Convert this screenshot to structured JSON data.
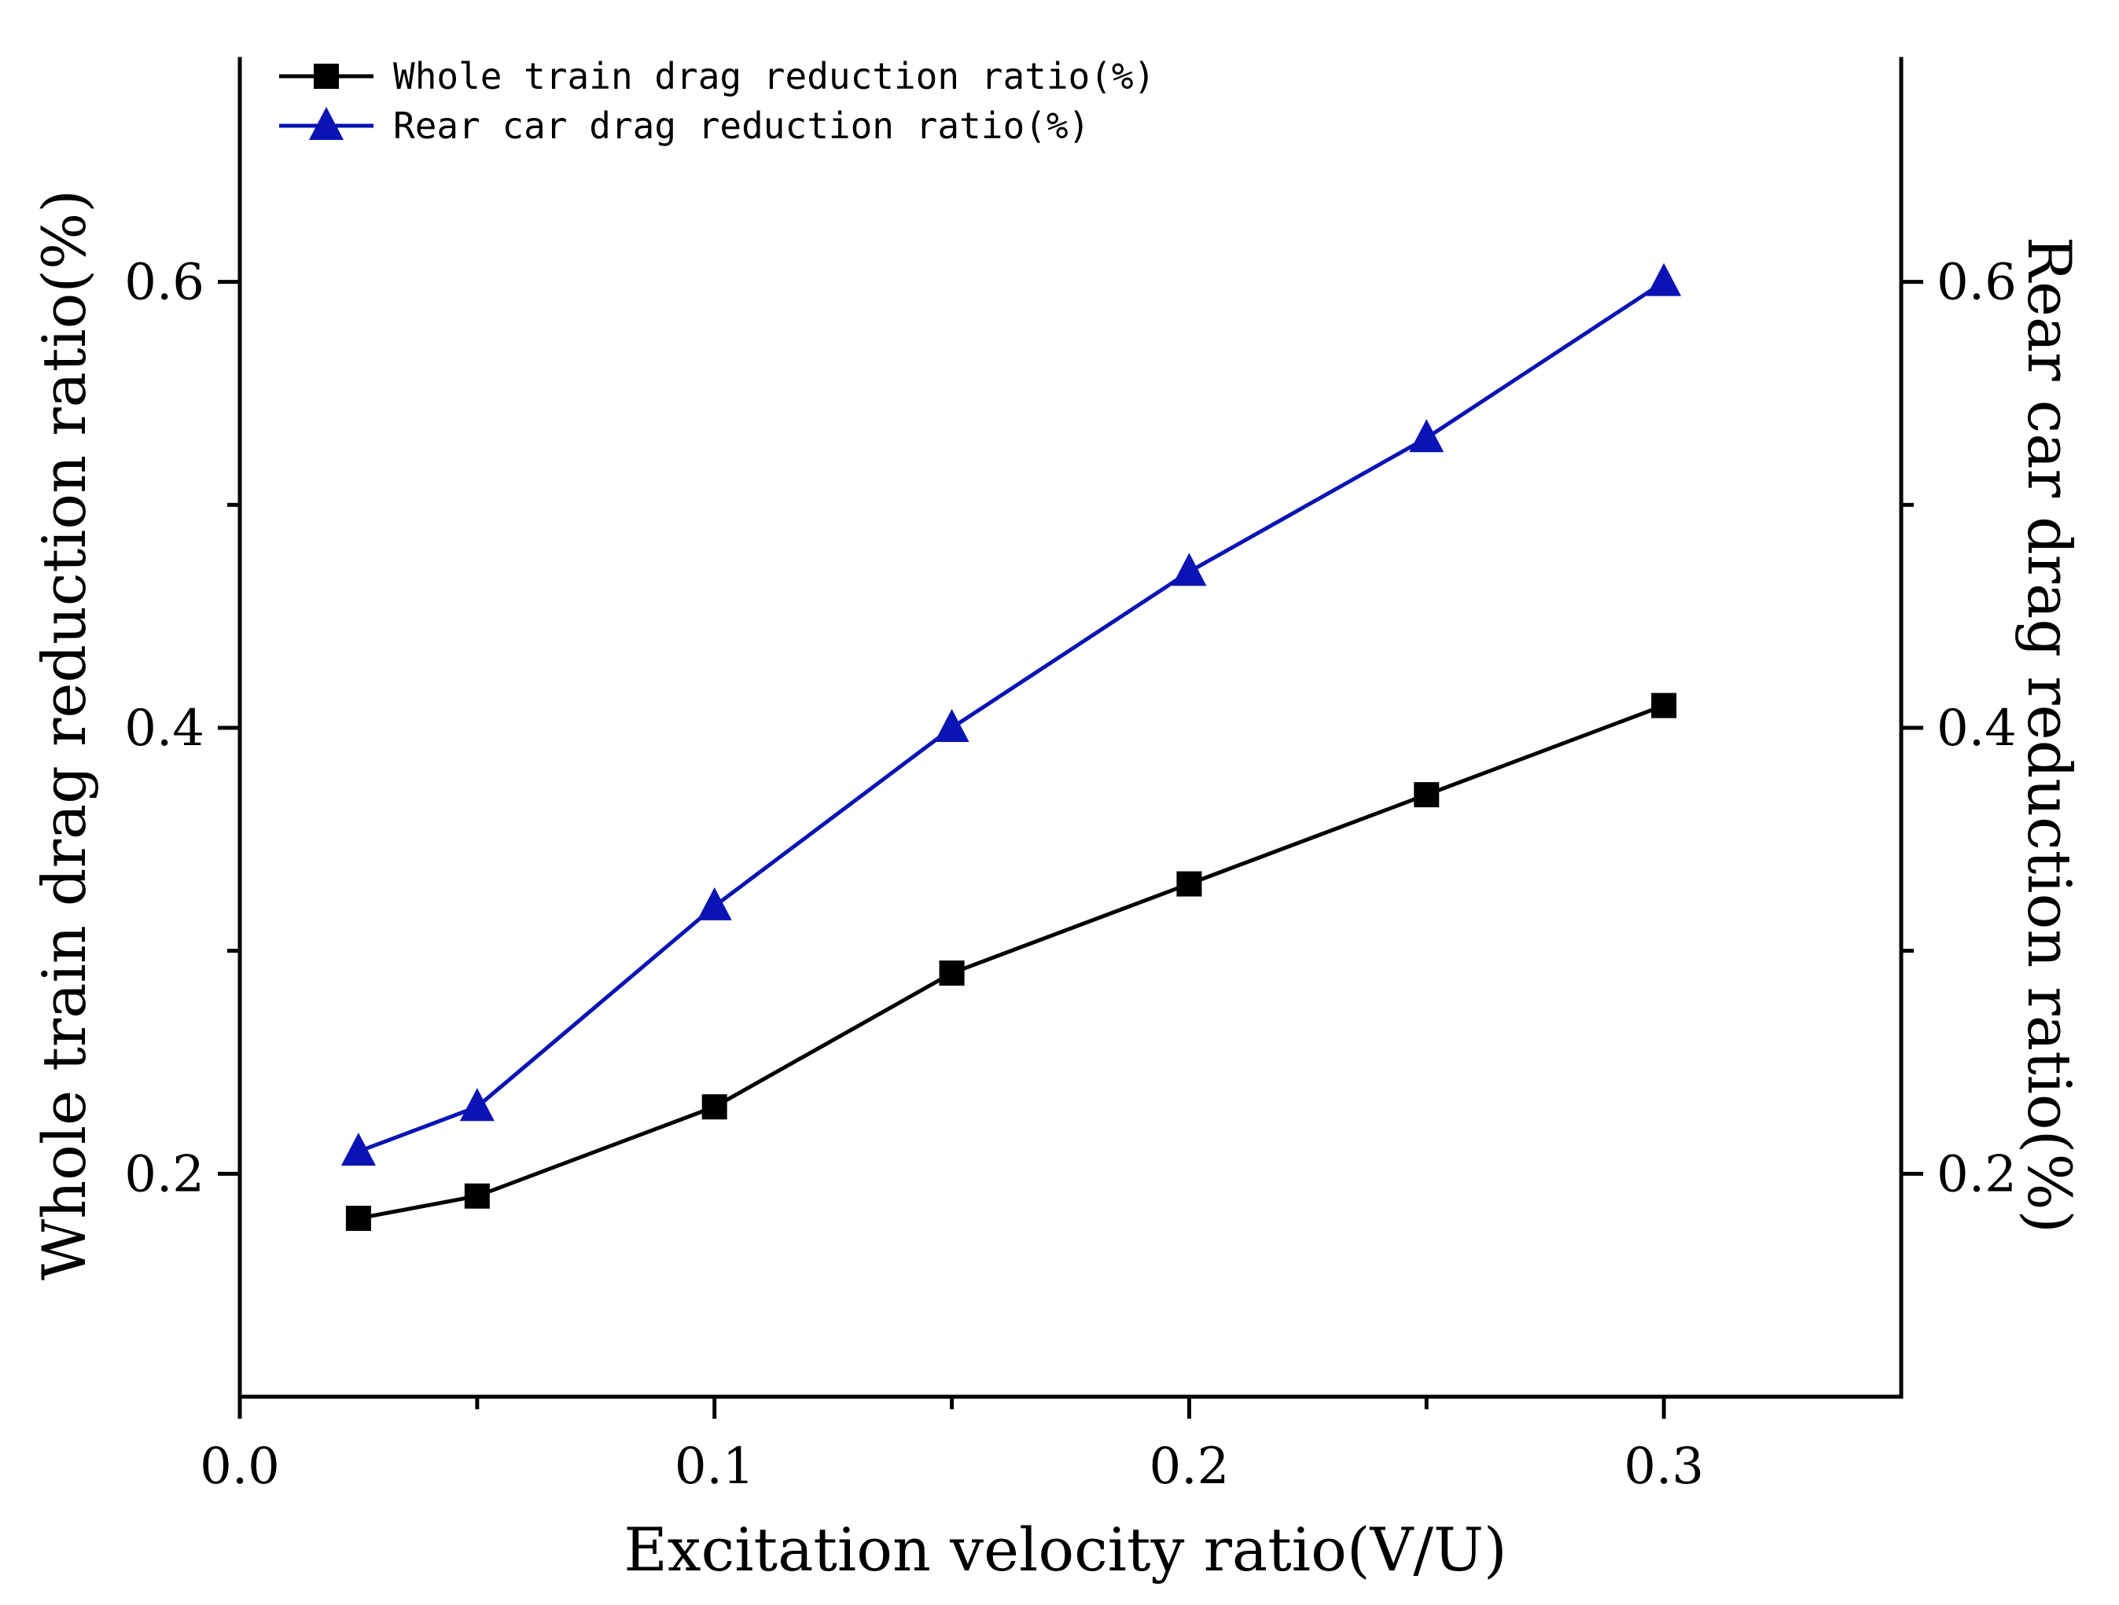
{
  "chart_data": {
    "type": "line",
    "xlabel": "Excitation velocity ratio(V/U)",
    "ylabel_left": "Whole train drag reduction ratio(%)",
    "ylabel_right": "Rear car drag reduction ratio(%)",
    "xlim": [
      0.0,
      0.35
    ],
    "ylim": [
      0.1,
      0.7
    ],
    "xticks": [
      0.0,
      0.1,
      0.2,
      0.3
    ],
    "xtick_labels": [
      "0.0",
      "0.1",
      "0.2",
      "0.3"
    ],
    "xminor_ticks": [
      0.05,
      0.15,
      0.25
    ],
    "yticks": [
      0.2,
      0.4,
      0.6
    ],
    "ytick_labels": [
      "0.2",
      "0.4",
      "0.6"
    ],
    "yminor_ticks": [
      0.3,
      0.5
    ],
    "grid": false,
    "legend_position": "top-left",
    "series": [
      {
        "name": "Whole train drag reduction ratio(%)",
        "color": "#000000",
        "marker": "square",
        "x": [
          0.025,
          0.05,
          0.1,
          0.15,
          0.2,
          0.25,
          0.3
        ],
        "y": [
          0.18,
          0.19,
          0.23,
          0.29,
          0.33,
          0.37,
          0.41
        ]
      },
      {
        "name": "Rear car drag reduction ratio(%)",
        "color": "#0a14b4",
        "marker": "triangle",
        "x": [
          0.025,
          0.05,
          0.1,
          0.15,
          0.2,
          0.25,
          0.3
        ],
        "y": [
          0.21,
          0.23,
          0.32,
          0.4,
          0.47,
          0.53,
          0.6
        ]
      }
    ]
  }
}
